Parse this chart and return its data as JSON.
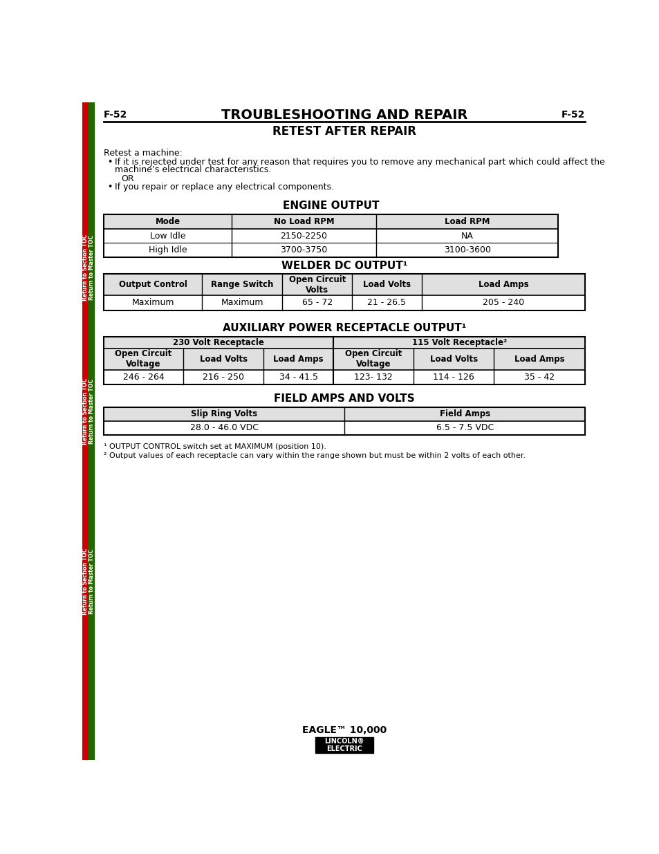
{
  "page_label_left": "F-52",
  "page_label_right": "F-52",
  "main_title": "TROUBLESHOOTING AND REPAIR",
  "section_title": "RETEST AFTER REPAIR",
  "intro_text": "Retest a machine:",
  "bullet1_line1": "If it is rejected under test for any reason that requires you to remove any mechanical part which could affect the",
  "bullet1_line2": "machine’s electrical characteristics.",
  "or_text": "OR",
  "bullet2": "If you repair or replace any electrical components.",
  "engine_title": "ENGINE OUTPUT",
  "engine_headers": [
    "Mode",
    "No Load RPM",
    "Load RPM"
  ],
  "engine_rows": [
    [
      "Low Idle",
      "2150-2250",
      "NA"
    ],
    [
      "High Idle",
      "3700-3750",
      "3100-3600"
    ]
  ],
  "welder_title": "WELDER DC OUTPUT¹",
  "welder_headers": [
    "Output Control",
    "Range Switch",
    "Open Circuit\nVolts",
    "Load Volts",
    "Load Amps"
  ],
  "welder_rows": [
    [
      "Maximum",
      "Maximum",
      "65 - 72",
      "21 - 26.5",
      "205 - 240"
    ]
  ],
  "aux_title": "AUXILIARY POWER RECEPTACLE OUTPUT¹",
  "aux_group_headers": [
    "230 Volt Receptacle",
    "115 Volt Receptacle²"
  ],
  "aux_headers": [
    "Open Circuit\nVoltage",
    "Load Volts",
    "Load Amps",
    "Open Circuit\nVoltage",
    "Load Volts",
    "Load Amps"
  ],
  "aux_rows": [
    [
      "246 - 264",
      "216 - 250",
      "34 - 41.5",
      "123- 132",
      "114 - 126",
      "35 - 42"
    ]
  ],
  "field_title": "FIELD AMPS AND VOLTS",
  "field_headers": [
    "Slip Ring Volts",
    "Field Amps"
  ],
  "field_rows": [
    [
      "28.0 - 46.0 VDC",
      "6.5 - 7.5 VDC"
    ]
  ],
  "footnote1": "¹ OUTPUT CONTROL switch set at MAXIMUM (position 10).",
  "footnote2": "² Output values of each receptacle can vary within the range shown but must be within 2 volts of each other.",
  "footer_text": "EAGLE™ 10,000",
  "sidebar_left_text": "Return to Section TOC",
  "sidebar_right_text": "Return to Master TOC",
  "bg_color": "#ffffff",
  "sidebar_red": "#cc0000",
  "sidebar_green": "#226600",
  "header_bg": "#e0e0e0",
  "line_color": "#000000"
}
